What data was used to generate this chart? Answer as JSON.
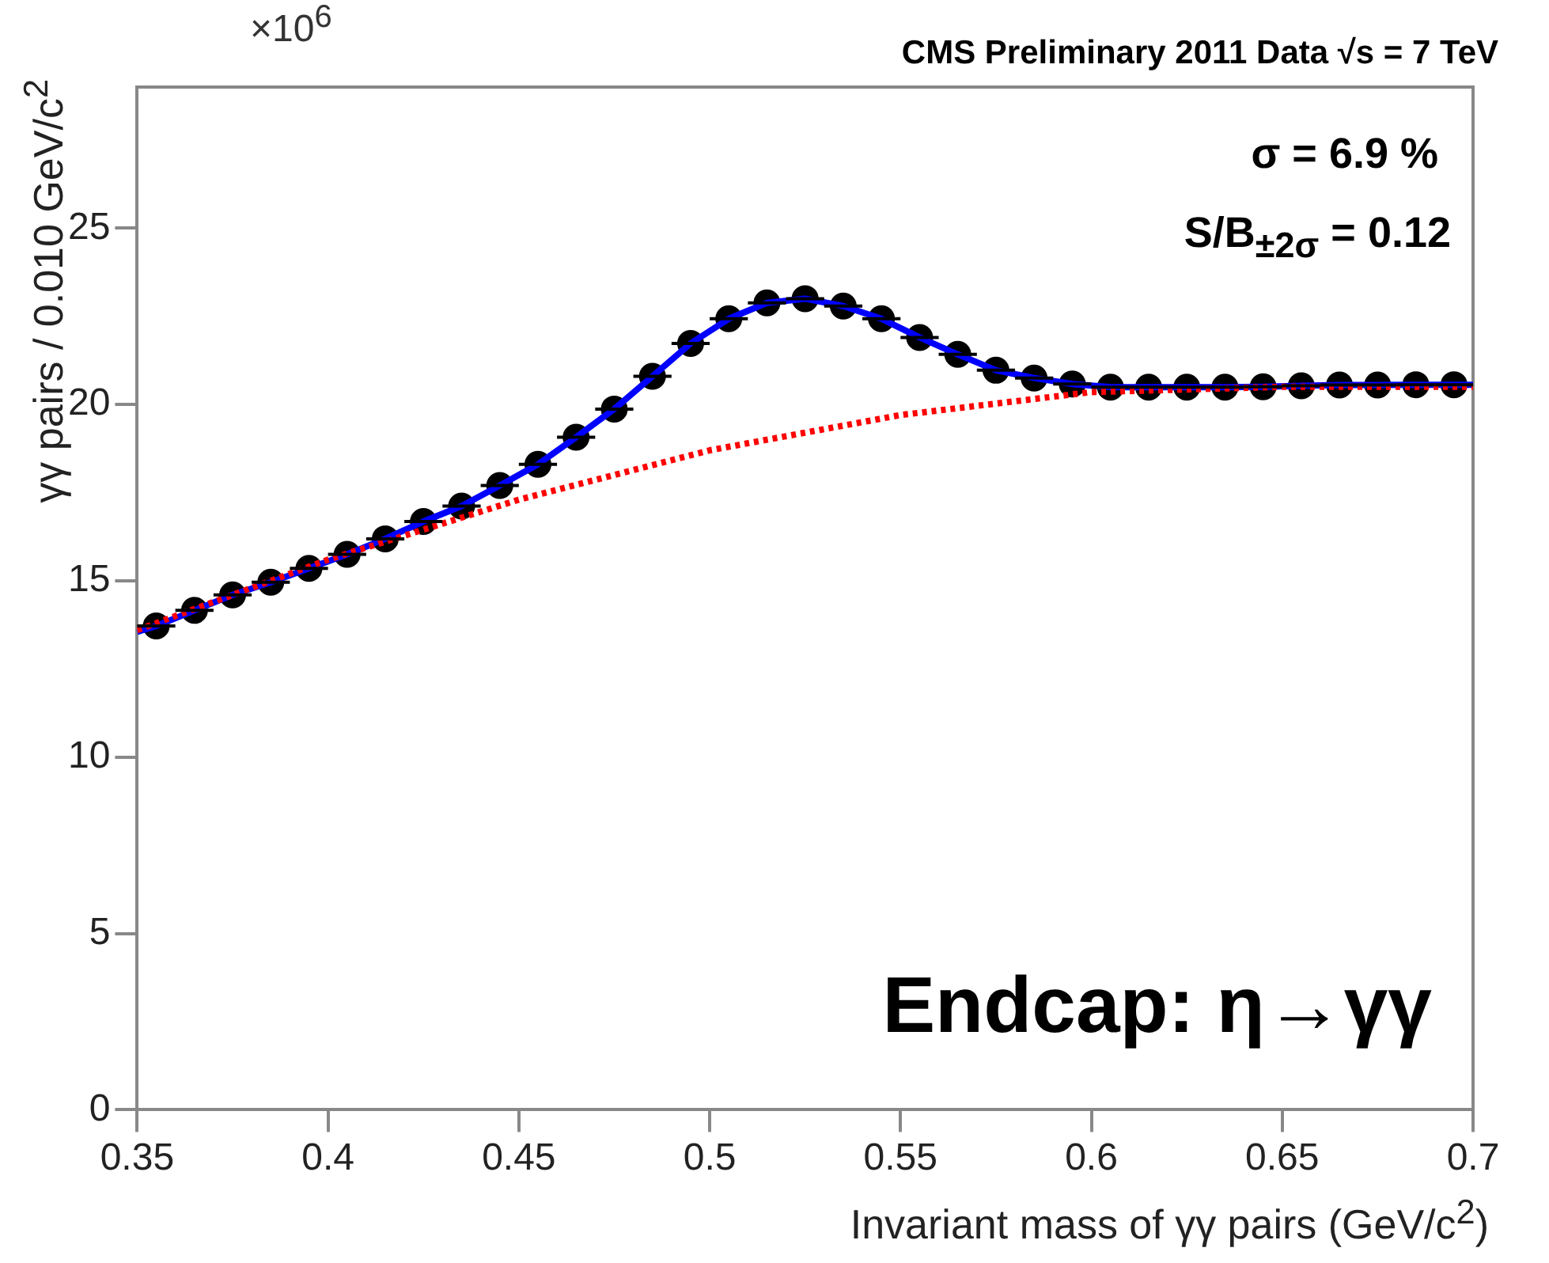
{
  "chart_data": {
    "type": "scatter",
    "title": "CMS Preliminary 2011 Data  √s = 7 TeV",
    "xlabel": "Invariant mass of γγ pairs (GeV/c$^{2}$)",
    "ylabel": "γγ pairs / 0.010 GeV/c$^{2}$",
    "annotations": [
      "×10$^{6}$",
      "σ = 6.9 %",
      "S/B$_{±2σ}$ = 0.12",
      "Endcap: η→γγ"
    ],
    "xlim": [
      0.35,
      0.7
    ],
    "xticks": [
      0.35,
      0.4,
      0.45,
      0.5,
      0.55,
      0.6,
      0.65,
      0.7
    ],
    "ylim": [
      0,
      29
    ],
    "yticks": [
      0,
      5,
      10,
      15,
      20,
      25
    ],
    "grid": false,
    "legend": false,
    "series": [
      {
        "type": "line",
        "color": "#ff0000",
        "line_style": "dotted",
        "marker": "none",
        "x": [
          0.35,
          0.4,
          0.45,
          0.5,
          0.55,
          0.6,
          0.65,
          0.7
        ],
        "values": [
          13.6,
          15.6,
          17.3,
          18.7,
          19.7,
          20.35,
          20.5,
          20.5
        ]
      },
      {
        "type": "line",
        "color": "#0000ff",
        "line_style": "solid",
        "marker": "none",
        "x": [
          0.35,
          0.355,
          0.365,
          0.375,
          0.385,
          0.395,
          0.405,
          0.415,
          0.425,
          0.435,
          0.445,
          0.455,
          0.465,
          0.475,
          0.485,
          0.495,
          0.505,
          0.515,
          0.525,
          0.535,
          0.545,
          0.555,
          0.565,
          0.575,
          0.585,
          0.595,
          0.605,
          0.615,
          0.625,
          0.635,
          0.645,
          0.655,
          0.665,
          0.675,
          0.685,
          0.695,
          0.7
        ],
        "values": [
          13.55,
          13.72,
          14.16,
          14.6,
          14.96,
          15.35,
          15.75,
          16.19,
          16.68,
          17.12,
          17.7,
          18.3,
          19.07,
          19.87,
          20.8,
          21.73,
          22.43,
          22.88,
          23.0,
          22.79,
          22.43,
          21.9,
          21.42,
          20.97,
          20.75,
          20.58,
          20.49,
          20.49,
          20.49,
          20.49,
          20.5,
          20.53,
          20.55,
          20.55,
          20.56,
          20.56,
          20.56
        ]
      },
      {
        "type": "scatter",
        "color": "#000000",
        "marker": "circle",
        "x": [
          0.355,
          0.365,
          0.375,
          0.385,
          0.395,
          0.405,
          0.415,
          0.425,
          0.435,
          0.445,
          0.455,
          0.465,
          0.475,
          0.485,
          0.495,
          0.505,
          0.515,
          0.525,
          0.535,
          0.545,
          0.555,
          0.565,
          0.575,
          0.585,
          0.595,
          0.605,
          0.615,
          0.625,
          0.635,
          0.645,
          0.655,
          0.665,
          0.675,
          0.685,
          0.695
        ],
        "values": [
          13.72,
          14.16,
          14.6,
          14.96,
          15.35,
          15.75,
          16.19,
          16.68,
          17.12,
          17.7,
          18.3,
          19.07,
          19.87,
          20.8,
          21.73,
          22.43,
          22.88,
          23.0,
          22.79,
          22.43,
          21.9,
          21.42,
          20.97,
          20.75,
          20.58,
          20.49,
          20.49,
          20.49,
          20.49,
          20.5,
          20.53,
          20.55,
          20.55,
          20.56,
          20.56
        ],
        "xerrors": [
          0.005,
          0.005,
          0.005,
          0.005,
          0.005,
          0.005,
          0.005,
          0.005,
          0.005,
          0.005,
          0.005,
          0.005,
          0.005,
          0.005,
          0.005,
          0.005,
          0.005,
          0.005,
          0.005,
          0.005,
          0.005,
          0.005,
          0.005,
          0.005,
          0.005,
          0.005,
          0.005,
          0.005,
          0.005,
          0.005,
          0.005,
          0.005,
          0.005,
          0.005,
          0.005
        ]
      }
    ]
  }
}
